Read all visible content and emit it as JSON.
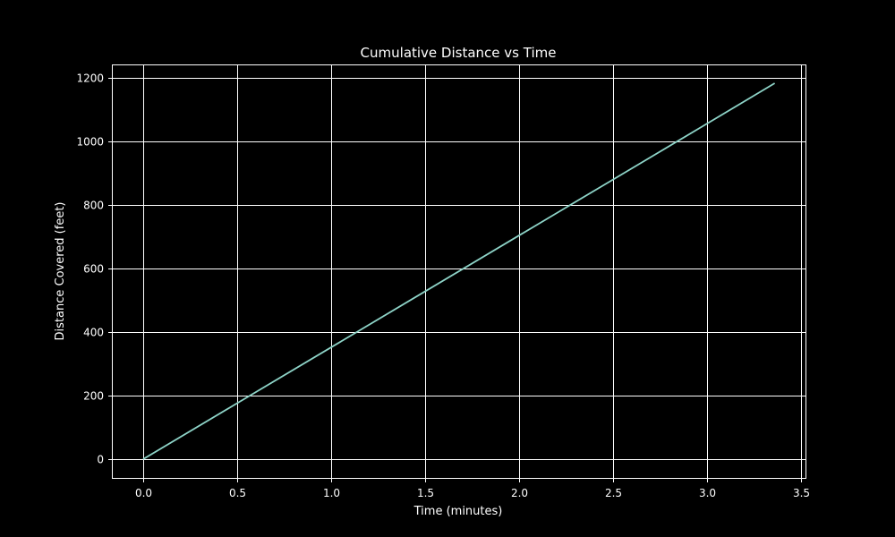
{
  "chart_data": {
    "type": "line",
    "title": "Cumulative Distance vs Time",
    "xlabel": "Time (minutes)",
    "ylabel": "Distance Covered (feet)",
    "xlim": [
      -0.17,
      3.52
    ],
    "ylim": [
      -60,
      1240
    ],
    "grid": true,
    "x_ticks": [
      "0.0",
      "0.5",
      "1.0",
      "1.5",
      "2.0",
      "2.5",
      "3.0",
      "3.5"
    ],
    "y_ticks": [
      "0",
      "200",
      "400",
      "600",
      "800",
      "1000",
      "1200"
    ],
    "series": [
      {
        "name": "Cumulative Distance",
        "color": "#8dd3c7",
        "x": [
          0,
          0.5,
          1.0,
          1.5,
          2.0,
          2.5,
          3.0,
          3.36
        ],
        "y": [
          0,
          176,
          352,
          528,
          704,
          880,
          1056,
          1183
        ]
      }
    ],
    "legend": null
  },
  "colors": {
    "background": "#000000",
    "grid": "#ffffff",
    "line": "#8dd3c7"
  }
}
